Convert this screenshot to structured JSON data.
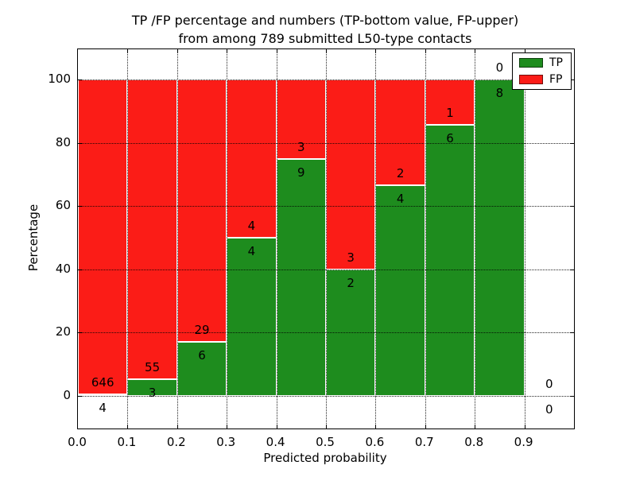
{
  "title": {
    "line1": "TP /FP percentage and numbers (TP-bottom value, FP-upper)",
    "line2": "from among 789 submitted L50-type contacts"
  },
  "axes": {
    "xlabel": "Predicted probability",
    "ylabel": "Percentage"
  },
  "legend": {
    "entries": [
      {
        "label": "TP",
        "color": "#1e8c1e"
      },
      {
        "label": "FP",
        "color": "#fb1c17"
      }
    ],
    "position": "upper right"
  },
  "chart_data": {
    "type": "bar",
    "stacked": true,
    "title": "TP /FP percentage and numbers (TP-bottom value, FP-upper) from among 789 submitted L50-type contacts",
    "xlabel": "Predicted probability",
    "ylabel": "Percentage",
    "xlim": [
      0.0,
      1.0
    ],
    "ylim": [
      -10.5,
      110
    ],
    "x_ticks": [
      "0.0",
      "0.1",
      "0.2",
      "0.3",
      "0.4",
      "0.5",
      "0.6",
      "0.7",
      "0.8",
      "0.9"
    ],
    "y_ticks": [
      "0",
      "20",
      "40",
      "60",
      "80",
      "100"
    ],
    "grid": "dotted",
    "legend_position": "upper right",
    "total_contacts": 789,
    "colors": {
      "tp": "#1e8c1e",
      "fp": "#fb1c17"
    },
    "bins": [
      {
        "range": [
          0.0,
          0.1
        ],
        "tp": 4,
        "fp": 646,
        "tp_pct": 0.62,
        "fp_pct": 99.38
      },
      {
        "range": [
          0.1,
          0.2
        ],
        "tp": 3,
        "fp": 55,
        "tp_pct": 5.17,
        "fp_pct": 94.83
      },
      {
        "range": [
          0.2,
          0.3
        ],
        "tp": 6,
        "fp": 29,
        "tp_pct": 17.14,
        "fp_pct": 82.86
      },
      {
        "range": [
          0.3,
          0.4
        ],
        "tp": 4,
        "fp": 4,
        "tp_pct": 50.0,
        "fp_pct": 50.0
      },
      {
        "range": [
          0.4,
          0.5
        ],
        "tp": 9,
        "fp": 3,
        "tp_pct": 75.0,
        "fp_pct": 25.0
      },
      {
        "range": [
          0.5,
          0.6
        ],
        "tp": 2,
        "fp": 3,
        "tp_pct": 40.0,
        "fp_pct": 60.0
      },
      {
        "range": [
          0.6,
          0.7
        ],
        "tp": 4,
        "fp": 2,
        "tp_pct": 66.67,
        "fp_pct": 33.33
      },
      {
        "range": [
          0.7,
          0.8
        ],
        "tp": 6,
        "fp": 1,
        "tp_pct": 85.71,
        "fp_pct": 14.29
      },
      {
        "range": [
          0.8,
          0.9
        ],
        "tp": 8,
        "fp": 0,
        "tp_pct": 100.0,
        "fp_pct": 0.0
      },
      {
        "range": [
          0.9,
          1.0
        ],
        "tp": 0,
        "fp": 0,
        "tp_pct": 0.0,
        "fp_pct": 0.0
      }
    ]
  }
}
